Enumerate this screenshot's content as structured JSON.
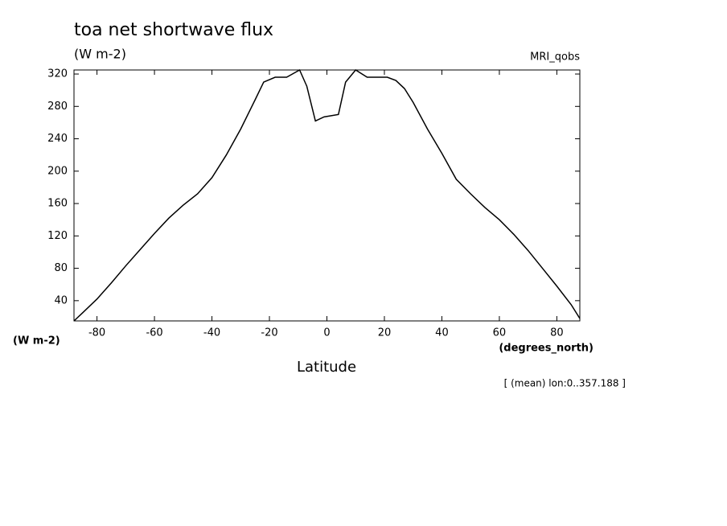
{
  "chart_data": {
    "type": "line",
    "title": "toa net shortwave flux",
    "subtitle": "(W m-2)",
    "dataset": "MRI_qobs",
    "y_label": "(W m-2)",
    "x_units": "(degrees_north)",
    "x_label": "Latitude",
    "footnote": "[ (mean) lon:0..357.188 ]",
    "x": [
      -88,
      -85,
      -80,
      -75,
      -70,
      -65,
      -60,
      -55,
      -50,
      -45,
      -40,
      -35,
      -30,
      -25,
      -22,
      -18,
      -14,
      -9.5,
      -7,
      -4,
      -1,
      4,
      6.5,
      10,
      14,
      18,
      21,
      24,
      27,
      30,
      35,
      40,
      45,
      50,
      55,
      60,
      65,
      70,
      75,
      80,
      85,
      88
    ],
    "series": [
      {
        "color": "#000000",
        "values": [
          15,
          25,
          42,
          62,
          83,
          103,
          123,
          142,
          158,
          172,
          192,
          220,
          252,
          288,
          310,
          316,
          316,
          325,
          305,
          262,
          267,
          270,
          310,
          325,
          316,
          316,
          316,
          312,
          302,
          285,
          252,
          222,
          190,
          172,
          155,
          140,
          122,
          102,
          80,
          58,
          35,
          18
        ]
      }
    ],
    "xlim": [
      -88,
      88
    ],
    "ylim": [
      15,
      325
    ],
    "xticks": [
      -80,
      -60,
      -40,
      -20,
      0,
      20,
      40,
      60,
      80
    ],
    "yticks": [
      40,
      80,
      120,
      160,
      200,
      240,
      280,
      320
    ]
  }
}
